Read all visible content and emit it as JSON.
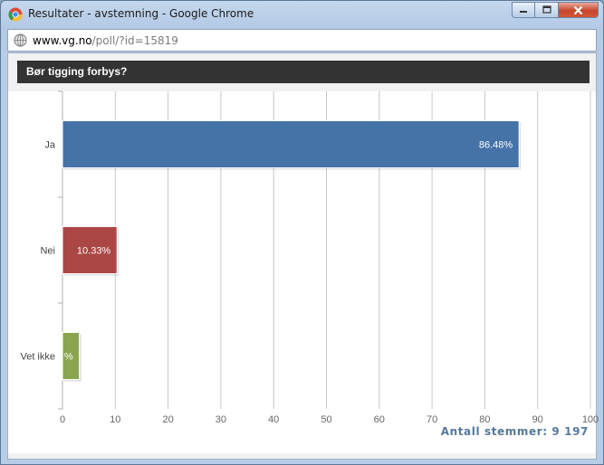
{
  "window": {
    "title": "Resultater - avstemning - Google Chrome",
    "url_host": "www.vg.no",
    "url_path": "/poll/?id=15819"
  },
  "poll": {
    "question": "Bør tigging forbys?",
    "total_label": "Antall stemmer: 9 197"
  },
  "colors": {
    "ja": "#4572a7",
    "nei": "#aa4643",
    "vet_ikke": "#89a54e",
    "header_bg": "#333333"
  },
  "chart_data": {
    "type": "bar",
    "orientation": "horizontal",
    "categories": [
      "Ja",
      "Nei",
      "Vet ikke"
    ],
    "values": [
      86.48,
      10.33,
      3.19
    ],
    "data_labels": [
      "86.48%",
      "10.33%",
      "%"
    ],
    "colors": [
      "#4572a7",
      "#aa4643",
      "#89a54e"
    ],
    "xlim": [
      0,
      100
    ],
    "xticks": [
      0,
      10,
      20,
      30,
      40,
      50,
      60,
      70,
      80,
      90,
      100
    ],
    "grid": true,
    "legend": "none"
  }
}
